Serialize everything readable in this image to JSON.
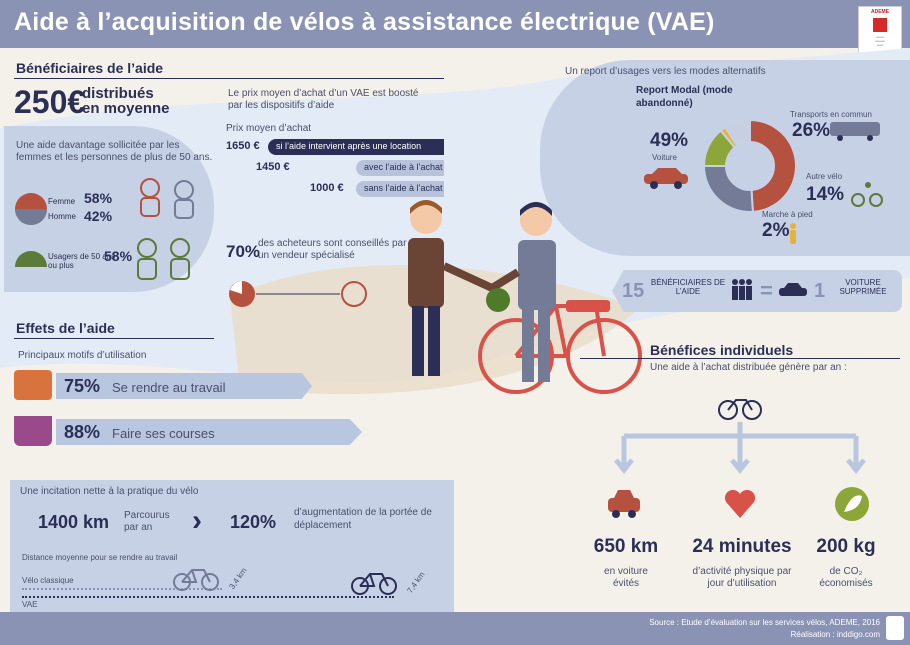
{
  "header": {
    "title": "Aide à l’acquisition de vélos à assistance électrique (VAE)",
    "logo_text": "ADEME"
  },
  "beneficiaires": {
    "title": "Bénéficiaires de l’aide",
    "amount": "250€",
    "amount_text": "distribués en moyenne",
    "sollicitee_text": "Une aide davantage sollicitée par les femmes et les personnes de plus de 50 ans.",
    "femme_label": "Femme",
    "femme_pct": "58%",
    "homme_label": "Homme",
    "homme_pct": "42%",
    "usagers_label": "Usagers de 50 ans ou plus",
    "usagers_pct": "58%"
  },
  "prix": {
    "intro": "Le prix moyen d’achat d’un VAE est boosté par les dispositifs d’aide",
    "label": "Prix moyen d’achat",
    "rows": [
      {
        "price": "1650 €",
        "desc": "si l’aide intervient après une location"
      },
      {
        "price": "1450 €",
        "desc": "avec l’aide à l’achat"
      },
      {
        "price": "1000 €",
        "desc": "sans l’aide à l’achat"
      }
    ],
    "conseil_pct": "70%",
    "conseil_text": "des acheteurs sont conseillés par un vendeur spécialisé"
  },
  "report": {
    "title": "Un report d’usages vers les modes alternatifs",
    "modal_label": "Report Modal (mode abandonné)",
    "voiture_pct": "49%",
    "voiture_label": "Voiture",
    "transports_label": "Transports en commun",
    "transports_pct": "26%",
    "velo_label": "Autre vélo",
    "velo_pct": "14%",
    "pied_label": "Marche à pied",
    "pied_pct": "2%",
    "donut": [
      {
        "name": "Voiture",
        "value": 49,
        "color": "#b5523f"
      },
      {
        "name": "Transports en commun",
        "value": 26,
        "color": "#737b97"
      },
      {
        "name": "Autre vélo",
        "value": 14,
        "color": "#8ca63a"
      },
      {
        "name": "Marche à pied",
        "value": 2,
        "color": "#e6b33a"
      },
      {
        "name": "Autre",
        "value": 9,
        "color": "#c7cfe0"
      }
    ]
  },
  "equiv": {
    "n1": "15",
    "label1": "BÉNÉFICIAIRES DE L’AIDE",
    "eq": "=",
    "n2": "1",
    "label2": "VOITURE SUPPRIMÉE"
  },
  "effets": {
    "title": "Effets de l’aide",
    "subtitle": "Principaux motifs d’utilisation",
    "travail_pct": "75%",
    "travail_label": "Se rendre au travail",
    "courses_pct": "88%",
    "courses_label": "Faire ses courses"
  },
  "incitation": {
    "title": "Une incitation nette à la pratique du vélo",
    "km": "1400 km",
    "parcourus": "Parcourus par an",
    "pct": "120%",
    "pct_text": "d’augmentation de la portée de déplacement",
    "distance_label": "Distance moyenne pour se rendre au travail",
    "classique_label": "Vélo classique",
    "classique_km": "3,4 km",
    "vae_label": "VAE",
    "vae_km": "7,4 km"
  },
  "benefices": {
    "title": "Bénéfices individuels",
    "subtitle": "Une aide à l’achat distribuée génère par an :",
    "items": [
      {
        "value": "650 km",
        "label": "en voiture évités"
      },
      {
        "value": "24 minutes",
        "label": "d’activité physique par jour d’utilisation"
      },
      {
        "value": "200 kg",
        "label": "de CO₂ économisés"
      }
    ]
  },
  "footer": {
    "source": "Source : Etude d’évaluation sur les services vélos, ADEME, 2016",
    "realisation": "Réalisation : inddigo.com"
  }
}
